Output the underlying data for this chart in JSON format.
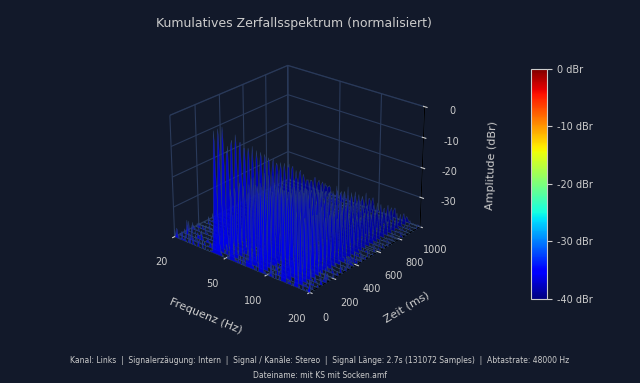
{
  "title": "Kumulatives Zerfallsspektrum (normalisiert)",
  "xlabel": "Frequenz (Hz)",
  "ylabel": "Amplitude (dBr)",
  "zlabel": "Zeit (ms)",
  "footer_line1": "Kanal: Links  |  Signalerzäugung: Intern  |  Signal / Kanäle: Stereo  |  Signal Länge: 2.7s (131072 Samples)  |  Abtastrate: 48000 Hz",
  "footer_line2": "Dateiname: mit KS mit Socken.amf",
  "bg_color": "#12192a",
  "text_color": "#cccccc",
  "grid_color": "#2a3a5a",
  "colorbar_ticks": [
    0,
    -10,
    -20,
    -30,
    -40
  ],
  "colorbar_labels": [
    "0 dBr",
    "-10 dBr",
    "-20 dBr",
    "-30 dBr",
    "-40 dBr"
  ],
  "freq_min": 20,
  "freq_max": 200,
  "time_min": 0,
  "time_max": 1000,
  "amp_min": -40,
  "amp_max": 0,
  "n_time_slices": 30,
  "n_freq_points": 200
}
